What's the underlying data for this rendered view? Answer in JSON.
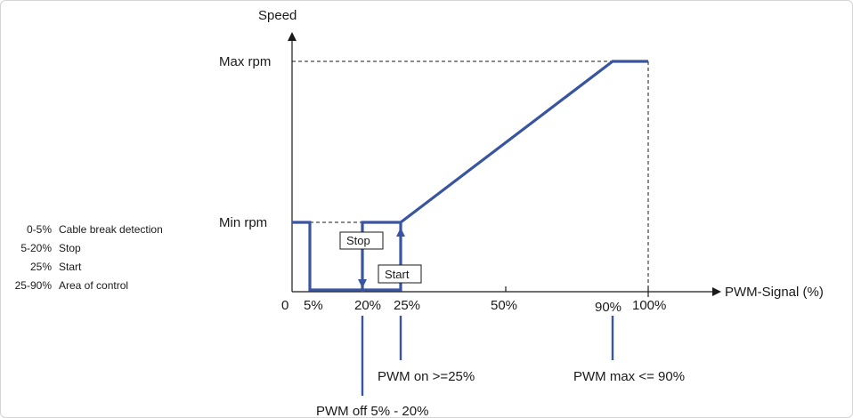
{
  "axes": {
    "y_title": "Speed",
    "x_title": "PWM-Signal (%)",
    "y_ticks": {
      "max": "Max rpm",
      "min": "Min rpm"
    },
    "x_ticks": {
      "t0": "0",
      "t5": "5%",
      "t20": "20%",
      "t25": "25%",
      "t50": "50%",
      "t90": "90%",
      "t100": "100%"
    }
  },
  "chart_data": {
    "type": "line",
    "x_domain": [
      0,
      100
    ],
    "y_levels": [
      "0",
      "Min rpm",
      "Max rpm"
    ],
    "curve_points": [
      {
        "x": 0,
        "y": "Min rpm"
      },
      {
        "x": 5,
        "y": "Min rpm"
      },
      {
        "x": 5,
        "y": "0"
      },
      {
        "x": 25,
        "y": "0"
      },
      {
        "x": 25,
        "y": "Min rpm"
      },
      {
        "x": 90,
        "y": "Max rpm"
      },
      {
        "x": 100,
        "y": "Max rpm"
      }
    ],
    "hysteresis": {
      "stop_at": 20,
      "start_at": 25
    }
  },
  "boxes": {
    "stop": "Stop",
    "start": "Start"
  },
  "callouts": {
    "pwm_on": "PWM on >=25%",
    "pwm_max": "PWM max <= 90%",
    "pwm_off": "PWM off 5% - 20%"
  },
  "legend": [
    {
      "range": "0-5%",
      "desc": "Cable break detection"
    },
    {
      "range": "5-20%",
      "desc": "Stop"
    },
    {
      "range": "25%",
      "desc": "Start"
    },
    {
      "range": "25-90%",
      "desc": "Area of control"
    }
  ],
  "colors": {
    "curve": "#3a55a0",
    "axis": "#1a1a1a"
  }
}
